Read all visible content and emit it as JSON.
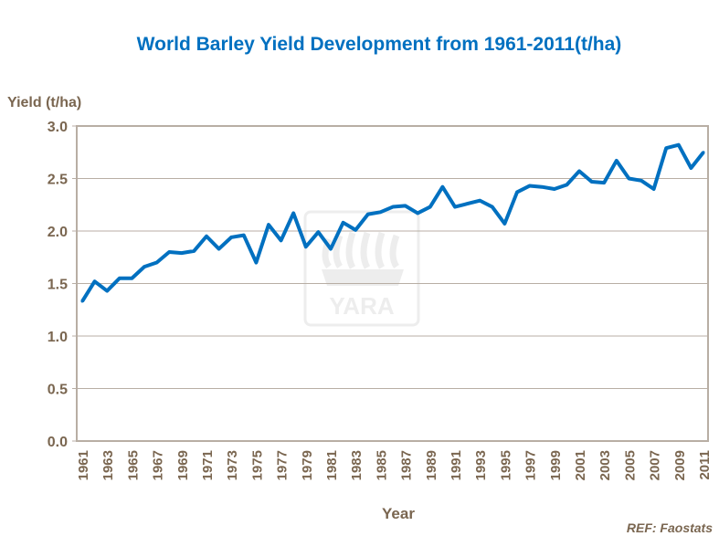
{
  "chart_data": {
    "type": "line",
    "title": "World Barley Yield Development from 1961-2011(t/ha)",
    "xlabel": "Year",
    "ylabel": "Yield (t/ha)",
    "source": "REF: Faostats",
    "watermark": "YARA",
    "ylim": [
      0,
      3.0
    ],
    "yticks": [
      "0.0",
      "0.5",
      "1.0",
      "1.5",
      "2.0",
      "2.5",
      "3.0"
    ],
    "xtick_labels": [
      "1961",
      "1963",
      "1965",
      "1967",
      "1969",
      "1971",
      "1973",
      "1975",
      "1977",
      "1979",
      "1981",
      "1983",
      "1985",
      "1987",
      "1989",
      "1991",
      "1993",
      "1995",
      "1997",
      "1999",
      "2001",
      "2003",
      "2005",
      "2007",
      "2009",
      "2011"
    ],
    "grid": true,
    "colors": {
      "line": "#0070c0",
      "title": "#0070c0",
      "axis_text": "#7a6650",
      "grid": "#b8aea4",
      "frame": "#b8aea4"
    },
    "x": [
      1961,
      1962,
      1963,
      1964,
      1965,
      1966,
      1967,
      1968,
      1969,
      1970,
      1971,
      1972,
      1973,
      1974,
      1975,
      1976,
      1977,
      1978,
      1979,
      1980,
      1981,
      1982,
      1983,
      1984,
      1985,
      1986,
      1987,
      1988,
      1989,
      1990,
      1991,
      1992,
      1993,
      1994,
      1995,
      1996,
      1997,
      1998,
      1999,
      2000,
      2001,
      2002,
      2003,
      2004,
      2005,
      2006,
      2007,
      2008,
      2009,
      2010,
      2011
    ],
    "values": [
      1.33,
      1.52,
      1.43,
      1.55,
      1.55,
      1.66,
      1.7,
      1.8,
      1.79,
      1.81,
      1.95,
      1.83,
      1.94,
      1.96,
      1.7,
      2.06,
      1.91,
      2.17,
      1.85,
      1.99,
      1.83,
      2.08,
      2.01,
      2.16,
      2.18,
      2.23,
      2.24,
      2.17,
      2.23,
      2.42,
      2.23,
      2.26,
      2.29,
      2.23,
      2.07,
      2.37,
      2.43,
      2.42,
      2.4,
      2.44,
      2.57,
      2.47,
      2.46,
      2.67,
      2.5,
      2.48,
      2.4,
      2.79,
      2.82,
      2.6,
      2.75
    ]
  }
}
